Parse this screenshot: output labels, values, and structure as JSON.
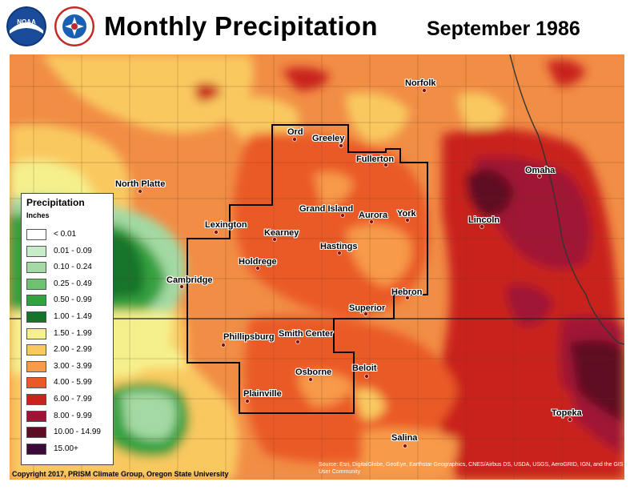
{
  "header": {
    "title": "Monthly Precipitation",
    "date": "September 1986",
    "logos": [
      {
        "name": "noaa-logo-icon",
        "text": "NOAA"
      },
      {
        "name": "nws-logo-icon",
        "text": "NATIONAL WEATHER SERVICE"
      }
    ]
  },
  "legend": {
    "title": "Precipitation",
    "units": "Inches",
    "items": [
      {
        "label": "< 0.01",
        "color": "#ffffff"
      },
      {
        "label": "0.01 - 0.09",
        "color": "#c8ecc8"
      },
      {
        "label": "0.10 - 0.24",
        "color": "#a3d9a3"
      },
      {
        "label": "0.25 - 0.49",
        "color": "#6fc06f"
      },
      {
        "label": "0.50 - 0.99",
        "color": "#34a140"
      },
      {
        "label": "1.00 - 1.49",
        "color": "#14752a"
      },
      {
        "label": "1.50 - 1.99",
        "color": "#f5f08c"
      },
      {
        "label": "2.00 - 2.99",
        "color": "#f9c961"
      },
      {
        "label": "3.00 - 3.99",
        "color": "#f79a4a"
      },
      {
        "label": "4.00 - 5.99",
        "color": "#ea5a26"
      },
      {
        "label": "6.00 - 7.99",
        "color": "#c9231e"
      },
      {
        "label": "8.00 - 9.99",
        "color": "#a01236"
      },
      {
        "label": "10.00 - 14.99",
        "color": "#5e0c24"
      },
      {
        "label": "15.00+",
        "color": "#3a0a3a"
      }
    ]
  },
  "cities": [
    {
      "name": "Norfolk"
    },
    {
      "name": "Ord"
    },
    {
      "name": "Greeley"
    },
    {
      "name": "Fullerton"
    },
    {
      "name": "Omaha"
    },
    {
      "name": "North Platte"
    },
    {
      "name": "Grand Island"
    },
    {
      "name": "Aurora"
    },
    {
      "name": "York"
    },
    {
      "name": "Lincoln"
    },
    {
      "name": "Lexington"
    },
    {
      "name": "Kearney"
    },
    {
      "name": "Hastings"
    },
    {
      "name": "Holdrege"
    },
    {
      "name": "Cambridge"
    },
    {
      "name": "Hebron"
    },
    {
      "name": "Superior"
    },
    {
      "name": "Phillipsburg"
    },
    {
      "name": "Smith Center"
    },
    {
      "name": "Beloit"
    },
    {
      "name": "Osborne"
    },
    {
      "name": "Plainville"
    },
    {
      "name": "Topeka"
    },
    {
      "name": "Salina"
    }
  ],
  "footer": {
    "copyright": "Copyright 2017, PRISM Climate Group, Oregon State University",
    "attribution": "Source: Esri, DigitalGlobe, GeoEye, Earthstar Geographics, CNES/Airbus DS, USDA, USGS, AeroGRID, IGN, and the GIS User Community"
  }
}
